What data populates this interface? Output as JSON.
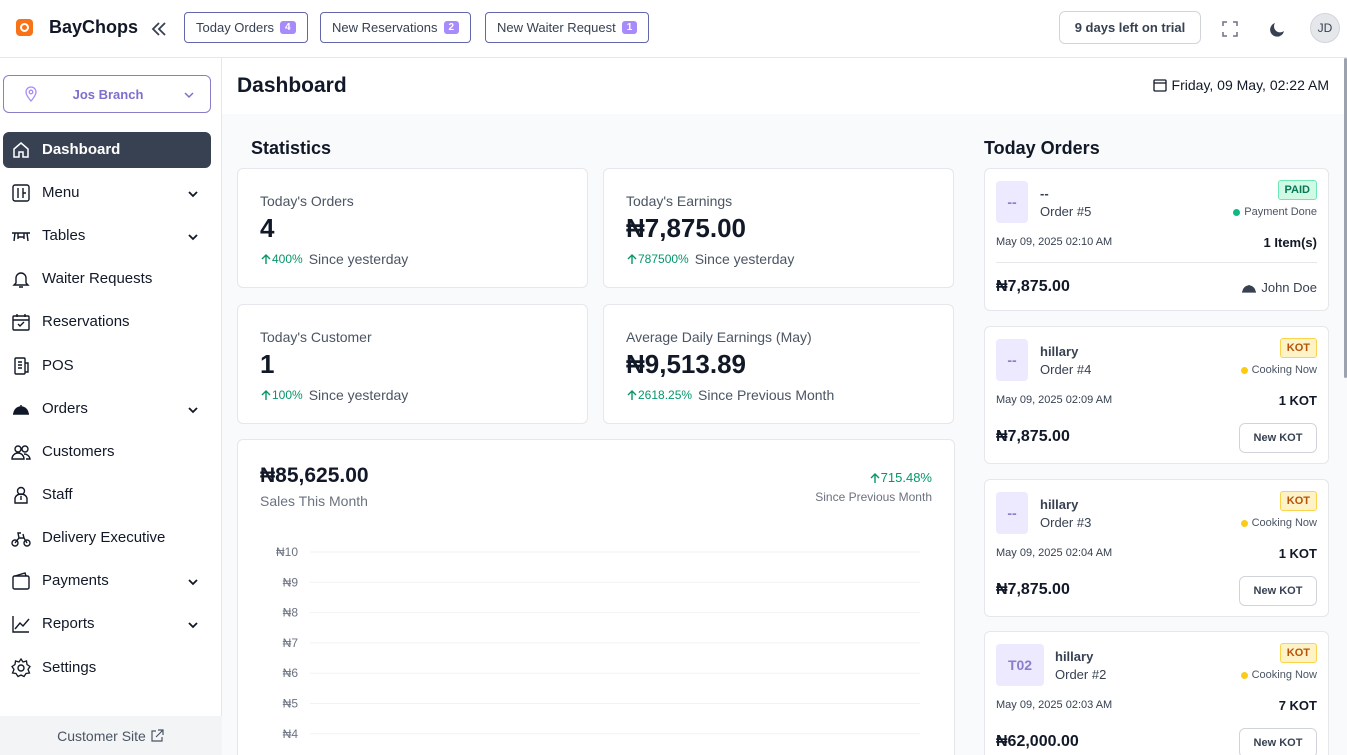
{
  "app": {
    "brand": "BayChops"
  },
  "topbar": {
    "pills": [
      {
        "label": "Today Orders",
        "count": "4"
      },
      {
        "label": "New Reservations",
        "count": "2"
      },
      {
        "label": "New Waiter Request",
        "count": "1"
      }
    ],
    "trial": "9 days left on trial",
    "avatar": "JD"
  },
  "sidebar": {
    "branch": "Jos Branch",
    "items": [
      {
        "label": "Dashboard",
        "icon": "home-icon"
      },
      {
        "label": "Menu",
        "icon": "menu-icon"
      },
      {
        "label": "Tables",
        "icon": "table-icon"
      },
      {
        "label": "Waiter Requests",
        "icon": "bell-icon"
      },
      {
        "label": "Reservations",
        "icon": "calendar-check-icon"
      },
      {
        "label": "POS",
        "icon": "pos-icon"
      },
      {
        "label": "Orders",
        "icon": "cloche-icon"
      },
      {
        "label": "Customers",
        "icon": "users-icon"
      },
      {
        "label": "Staff",
        "icon": "staff-icon"
      },
      {
        "label": "Delivery Executive",
        "icon": "scooter-icon"
      },
      {
        "label": "Payments",
        "icon": "wallet-icon"
      },
      {
        "label": "Reports",
        "icon": "chart-line-icon"
      },
      {
        "label": "Settings",
        "icon": "gear-icon"
      }
    ],
    "customer_site": "Customer Site"
  },
  "header": {
    "title": "Dashboard",
    "date": "Friday, 09 May, 02:22 AM"
  },
  "statistics": {
    "title": "Statistics",
    "cards": [
      {
        "label": "Today's Orders",
        "value": "4",
        "change": "400%",
        "since": "Since yesterday"
      },
      {
        "label": "Today's Earnings",
        "value": "₦7,875.00",
        "change": "787500%",
        "since": "Since yesterday"
      },
      {
        "label": "Today's Customer",
        "value": "1",
        "change": "100%",
        "since": "Since yesterday"
      },
      {
        "label": "Average Daily Earnings (May)",
        "value": "₦9,513.89",
        "change": "2618.25%",
        "since": "Since Previous Month"
      }
    ]
  },
  "sales": {
    "total": "₦85,625.00",
    "subtitle": "Sales This Month",
    "change": "715.48%",
    "since": "Since Previous Month"
  },
  "chart_data": {
    "type": "line",
    "yticks": [
      "₦10",
      "₦9",
      "₦8",
      "₦7",
      "₦6",
      "₦5",
      "₦4"
    ],
    "grid": true
  },
  "orders": {
    "title": "Today Orders",
    "items": [
      {
        "badge": "--",
        "name": "--",
        "number": "Order #5",
        "status": "PAID",
        "state": "Payment Done",
        "time": "May 09, 2025 02:10 AM",
        "qty": "1 Item(s)",
        "amount": "₦7,875.00",
        "waiter": "John Doe"
      },
      {
        "badge": "--",
        "name": "hillary",
        "number": "Order #4",
        "status": "KOT",
        "state": "Cooking Now",
        "time": "May 09, 2025 02:09 AM",
        "qty": "1 KOT",
        "amount": "₦7,875.00",
        "action": "New KOT"
      },
      {
        "badge": "--",
        "name": "hillary",
        "number": "Order #3",
        "status": "KOT",
        "state": "Cooking Now",
        "time": "May 09, 2025 02:04 AM",
        "qty": "1 KOT",
        "amount": "₦7,875.00",
        "action": "New KOT"
      },
      {
        "badge": "T02",
        "name": "hillary",
        "number": "Order #2",
        "status": "KOT",
        "state": "Cooking Now",
        "time": "May 09, 2025 02:03 AM",
        "qty": "7 KOT",
        "amount": "₦62,000.00",
        "action": "New KOT"
      }
    ]
  }
}
